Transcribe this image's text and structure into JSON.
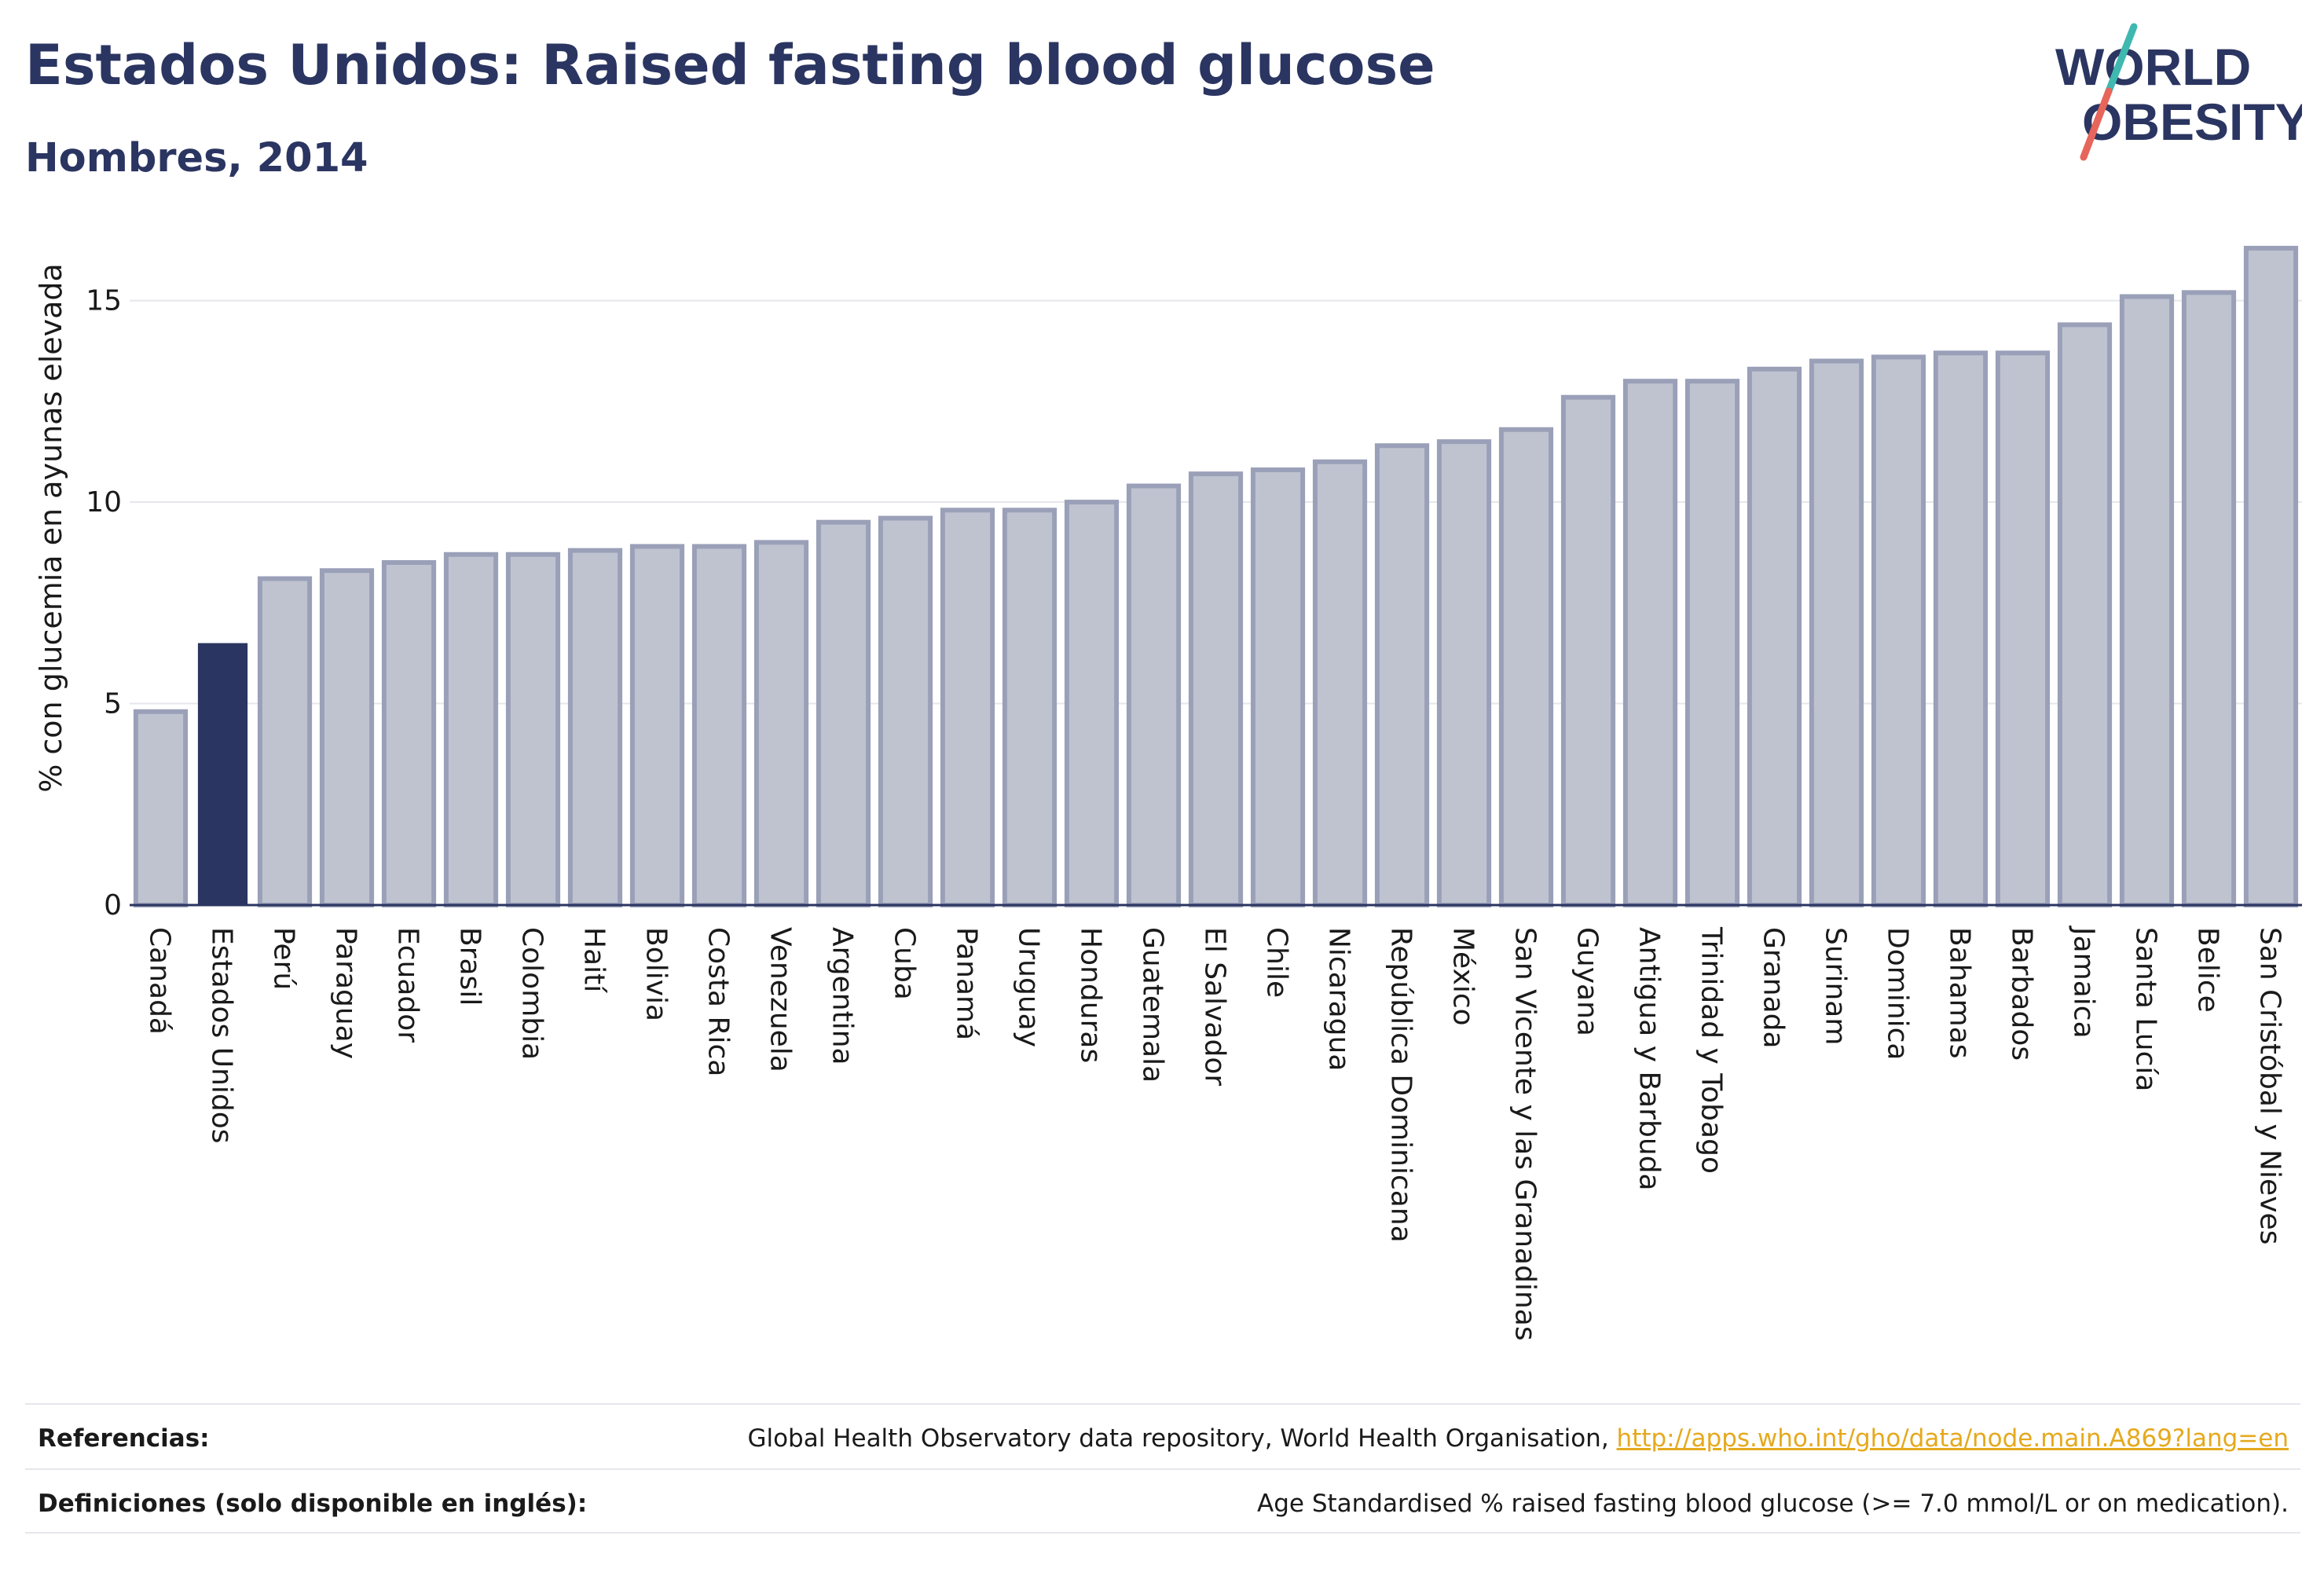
{
  "header": {
    "title": "Estados Unidos: Raised fasting blood glucose",
    "subtitle": "Hombres, 2014"
  },
  "logo": {
    "line1": "WORLD",
    "line2": "OBESITY"
  },
  "colors": {
    "title": "#2b3561",
    "highlight_bar": "#2b3561",
    "bar_fill": "#bfc3d0",
    "bar_stroke": "#9aa0b8",
    "grid": "#e6e7ec",
    "link": "#e5a91d",
    "logo_slash_top": "#3fb8b0",
    "logo_slash_bottom": "#e7655a"
  },
  "chart_data": {
    "type": "bar",
    "ylabel": "% con glucemia en ayunas elevada",
    "ylim": [
      0,
      17
    ],
    "yticks": [
      0,
      5,
      10,
      15
    ],
    "grid": true,
    "highlight": "Estados Unidos",
    "categories": [
      "Canadá",
      "Estados Unidos",
      "Perú",
      "Paraguay",
      "Ecuador",
      "Brasil",
      "Colombia",
      "Haití",
      "Bolivia",
      "Costa Rica",
      "Venezuela",
      "Argentina",
      "Cuba",
      "Panamá",
      "Uruguay",
      "Honduras",
      "Guatemala",
      "El Salvador",
      "Chile",
      "Nicaragua",
      "República Dominicana",
      "México",
      "San Vicente y las Granadinas",
      "Guyana",
      "Antigua y Barbuda",
      "Trinidad y Tobago",
      "Granada",
      "Surinam",
      "Dominica",
      "Bahamas",
      "Barbados",
      "Jamaica",
      "Santa Lucía",
      "Belice",
      "San Cristóbal y Nieves"
    ],
    "values": [
      4.8,
      6.5,
      8.1,
      8.3,
      8.5,
      8.7,
      8.7,
      8.8,
      8.9,
      8.9,
      9.0,
      9.5,
      9.6,
      9.8,
      9.8,
      10.0,
      10.4,
      10.7,
      10.8,
      11.0,
      11.4,
      11.5,
      11.8,
      12.6,
      13.0,
      13.0,
      13.3,
      13.5,
      13.6,
      13.7,
      13.7,
      14.4,
      15.1,
      15.2,
      16.3
    ]
  },
  "footer": {
    "references_label": "Referencias:",
    "references_text": "Global Health Observatory data repository, World Health Organisation, ",
    "references_link": "http://apps.who.int/gho/data/node.main.A869?lang=en",
    "definitions_label": "Definiciones (solo disponible en inglés):",
    "definitions_text": "Age Standardised % raised fasting blood glucose (>= 7.0 mmol/L or on medication)."
  }
}
